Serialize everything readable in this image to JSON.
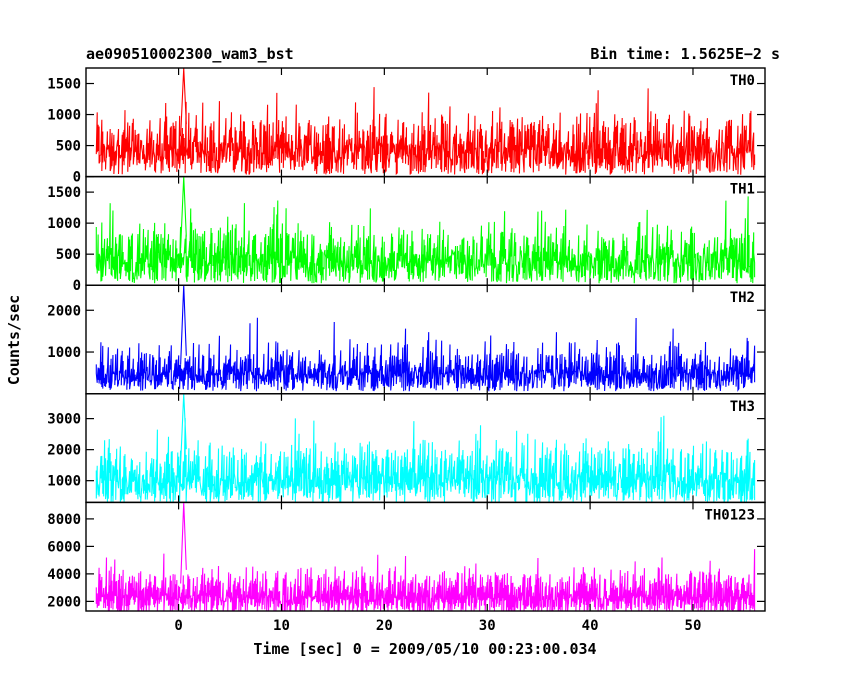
{
  "header": {
    "observation_id": "ae090510002300_wam3_bst",
    "bin_time": "Bin time: 1.5625E−2 s"
  },
  "chart_data": {
    "type": "line",
    "xlabel": "Time [sec] 0 = 2009/05/10 00:23:00.034",
    "ylabel": "Counts/sec",
    "xlim": [
      -9,
      57
    ],
    "x_ticks": [
      0,
      10,
      20,
      30,
      40,
      50
    ],
    "grid": false,
    "panels": [
      {
        "name": "TH0",
        "color": "#ff0000",
        "ylim": [
          0,
          1750
        ],
        "y_ticks": [
          0,
          500,
          1000,
          1500
        ],
        "baseline_mean": 650,
        "noise_range": [
          50,
          1500
        ],
        "burst": {
          "time": 0.5,
          "peak": 1750
        }
      },
      {
        "name": "TH1",
        "color": "#00ff00",
        "ylim": [
          0,
          1750
        ],
        "y_ticks": [
          0,
          500,
          1000,
          1500
        ],
        "baseline_mean": 600,
        "noise_range": [
          50,
          1450
        ],
        "burst": {
          "time": 0.5,
          "peak": 1750
        }
      },
      {
        "name": "TH2",
        "color": "#0000ff",
        "ylim": [
          0,
          2600
        ],
        "y_ticks": [
          1000,
          2000
        ],
        "baseline_mean": 700,
        "noise_range": [
          100,
          1900
        ],
        "burst": {
          "time": 0.5,
          "peak": 2600
        }
      },
      {
        "name": "TH3",
        "color": "#00ffff",
        "ylim": [
          300,
          3800
        ],
        "y_ticks": [
          1000,
          2000,
          3000
        ],
        "baseline_mean": 1550,
        "noise_range": [
          400,
          3100
        ],
        "burst": {
          "time": 0.5,
          "peak": 3800
        }
      },
      {
        "name": "TH0123",
        "color": "#ff00ff",
        "ylim": [
          1300,
          9200
        ],
        "y_ticks": [
          2000,
          4000,
          6000,
          8000
        ],
        "baseline_mean": 3300,
        "noise_range": [
          1700,
          5900
        ],
        "burst": {
          "time": 0.5,
          "peak": 9200
        }
      }
    ]
  }
}
